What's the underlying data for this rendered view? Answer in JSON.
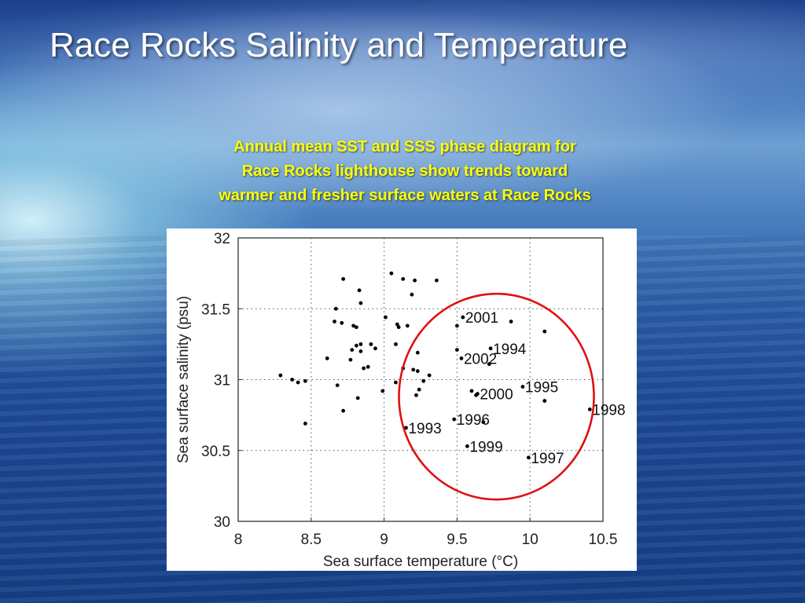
{
  "slide": {
    "title": "Race Rocks Salinity and Temperature",
    "subtitle_lines": [
      "Annual mean SST and SSS phase diagram for",
      "Race Rocks lighthouse show trends toward",
      "warmer and fresher surface waters at Race Rocks"
    ]
  },
  "colors": {
    "title_text": "#ffffff",
    "subtitle_text": "#ffff00",
    "point": "#000000",
    "highlight_circle": "#e01010",
    "grid": "#555555"
  },
  "chart_data": {
    "type": "scatter",
    "title": "",
    "xlabel": "Sea surface temperature (°C)",
    "ylabel": "Sea surface salinity (psu)",
    "xlim": [
      8,
      10.5
    ],
    "ylim": [
      30,
      32
    ],
    "xticks": [
      8,
      8.5,
      9,
      9.5,
      10,
      10.5
    ],
    "xtick_labels": [
      "8",
      "8.5",
      "9",
      "9.5",
      "10",
      "10.5"
    ],
    "yticks": [
      30,
      30.5,
      31,
      31.5,
      32
    ],
    "ytick_labels": [
      "30",
      "30.5",
      "31",
      "31.5",
      "32"
    ],
    "grid": true,
    "grid_style": "dotted",
    "points": [
      {
        "x": 8.29,
        "y": 31.03
      },
      {
        "x": 8.37,
        "y": 31.0
      },
      {
        "x": 8.41,
        "y": 30.98
      },
      {
        "x": 8.46,
        "y": 30.99
      },
      {
        "x": 8.46,
        "y": 30.69
      },
      {
        "x": 8.61,
        "y": 31.15
      },
      {
        "x": 8.66,
        "y": 31.41
      },
      {
        "x": 8.67,
        "y": 31.5
      },
      {
        "x": 8.68,
        "y": 30.96
      },
      {
        "x": 8.71,
        "y": 31.4
      },
      {
        "x": 8.72,
        "y": 31.71
      },
      {
        "x": 8.72,
        "y": 30.78
      },
      {
        "x": 8.77,
        "y": 31.14
      },
      {
        "x": 8.78,
        "y": 31.21
      },
      {
        "x": 8.79,
        "y": 31.38
      },
      {
        "x": 8.81,
        "y": 31.24
      },
      {
        "x": 8.81,
        "y": 31.37
      },
      {
        "x": 8.82,
        "y": 30.87
      },
      {
        "x": 8.83,
        "y": 31.63
      },
      {
        "x": 8.84,
        "y": 31.54
      },
      {
        "x": 8.84,
        "y": 31.25
      },
      {
        "x": 8.84,
        "y": 31.2
      },
      {
        "x": 8.86,
        "y": 31.08
      },
      {
        "x": 8.89,
        "y": 31.09
      },
      {
        "x": 8.91,
        "y": 31.25
      },
      {
        "x": 8.94,
        "y": 31.22
      },
      {
        "x": 8.99,
        "y": 30.92
      },
      {
        "x": 9.01,
        "y": 31.44
      },
      {
        "x": 9.05,
        "y": 31.75
      },
      {
        "x": 9.08,
        "y": 31.25
      },
      {
        "x": 9.08,
        "y": 30.98
      },
      {
        "x": 9.09,
        "y": 31.39
      },
      {
        "x": 9.1,
        "y": 31.37
      },
      {
        "x": 9.13,
        "y": 31.71
      },
      {
        "x": 9.13,
        "y": 31.08
      },
      {
        "x": 9.16,
        "y": 31.38
      },
      {
        "x": 9.19,
        "y": 31.6
      },
      {
        "x": 9.2,
        "y": 31.07
      },
      {
        "x": 9.21,
        "y": 31.7
      },
      {
        "x": 9.22,
        "y": 30.89
      },
      {
        "x": 9.23,
        "y": 31.19
      },
      {
        "x": 9.23,
        "y": 31.06
      },
      {
        "x": 9.24,
        "y": 30.93
      },
      {
        "x": 9.27,
        "y": 30.99
      },
      {
        "x": 9.31,
        "y": 31.03
      },
      {
        "x": 9.36,
        "y": 31.7
      },
      {
        "x": 9.5,
        "y": 31.38
      },
      {
        "x": 9.5,
        "y": 31.21
      },
      {
        "x": 9.6,
        "y": 30.92
      },
      {
        "x": 9.63,
        "y": 30.89
      },
      {
        "x": 9.68,
        "y": 30.7
      },
      {
        "x": 9.72,
        "y": 31.11
      },
      {
        "x": 9.87,
        "y": 31.41
      },
      {
        "x": 10.1,
        "y": 31.34
      },
      {
        "x": 10.1,
        "y": 30.85
      }
    ],
    "labeled_points": [
      {
        "label": "2001",
        "x": 9.54,
        "y": 31.44
      },
      {
        "label": "1994",
        "x": 9.73,
        "y": 31.22
      },
      {
        "label": "2002",
        "x": 9.53,
        "y": 31.15
      },
      {
        "label": "1995",
        "x": 9.95,
        "y": 30.95
      },
      {
        "label": "2000",
        "x": 9.64,
        "y": 30.9
      },
      {
        "label": "1998",
        "x": 10.41,
        "y": 30.79
      },
      {
        "label": "1996",
        "x": 9.48,
        "y": 30.72
      },
      {
        "label": "1993",
        "x": 9.15,
        "y": 30.66
      },
      {
        "label": "1999",
        "x": 9.57,
        "y": 30.53
      },
      {
        "label": "1997",
        "x": 9.99,
        "y": 30.45
      }
    ],
    "annotation": {
      "type": "circle",
      "center": {
        "x": 9.77,
        "y": 30.88
      },
      "color": "#e01010"
    }
  }
}
